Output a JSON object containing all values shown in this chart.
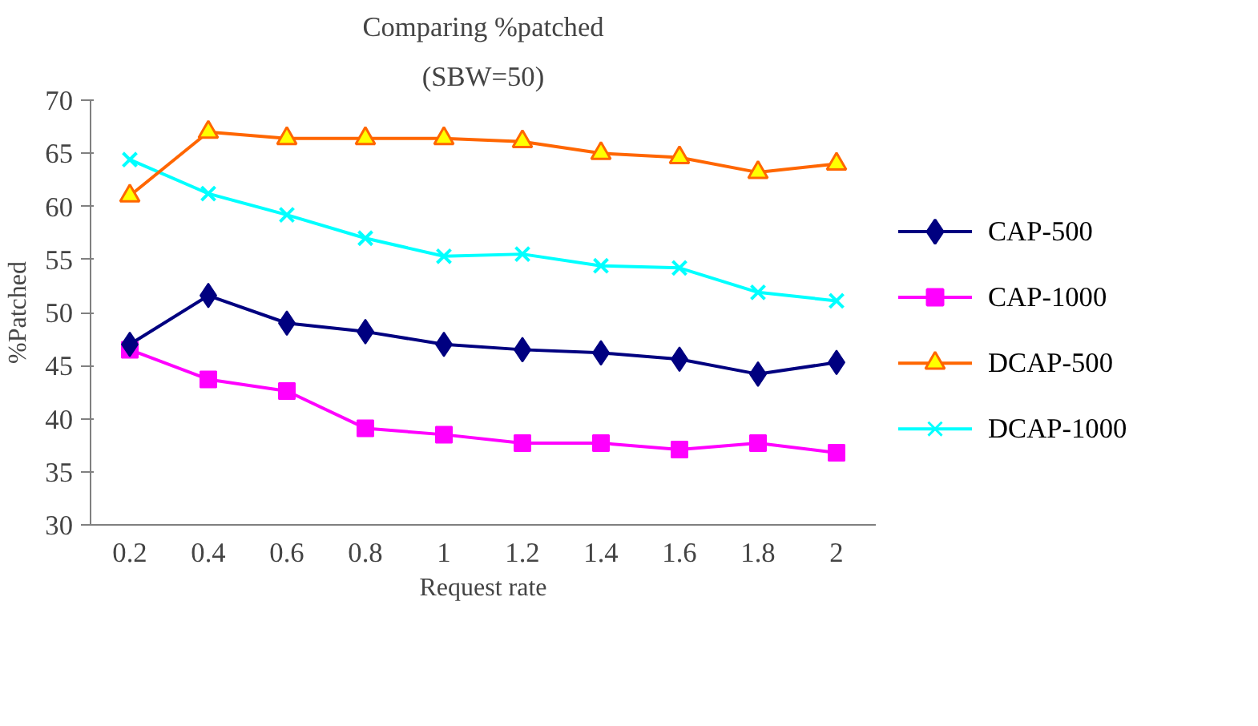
{
  "chart_data": {
    "type": "line",
    "title": "Comparing %patched",
    "subtitle": "(SBW=50)",
    "xlabel": "Request rate",
    "ylabel": "%Patched",
    "categories": [
      "0.2",
      "0.4",
      "0.6",
      "0.8",
      "1",
      "1.2",
      "1.4",
      "1.6",
      "1.8",
      "2"
    ],
    "series": [
      {
        "name": "CAP-500",
        "color": "#000080",
        "marker": "diamond",
        "values": [
          47.0,
          51.6,
          49.0,
          48.2,
          47.0,
          46.5,
          46.2,
          45.6,
          44.2,
          45.3
        ]
      },
      {
        "name": "CAP-1000",
        "color": "#ff00ff",
        "marker": "square",
        "values": [
          46.5,
          43.7,
          42.6,
          39.1,
          38.5,
          37.7,
          37.7,
          37.1,
          37.7,
          36.8
        ]
      },
      {
        "name": "DCAP-500",
        "color": "#ff6600",
        "marker": "triangle",
        "values": [
          61.0,
          67.0,
          66.4,
          66.4,
          66.4,
          66.1,
          65.0,
          64.6,
          63.2,
          64.0
        ]
      },
      {
        "name": "DCAP-1000",
        "color": "#00ffff",
        "marker": "cross",
        "values": [
          64.4,
          61.2,
          59.2,
          57.0,
          55.3,
          55.5,
          54.4,
          54.2,
          51.9,
          51.1
        ]
      }
    ],
    "ylim": [
      30,
      70
    ],
    "yticks": [
      30,
      35,
      40,
      45,
      50,
      55,
      60,
      65,
      70
    ],
    "grid": false,
    "legend": "right"
  }
}
